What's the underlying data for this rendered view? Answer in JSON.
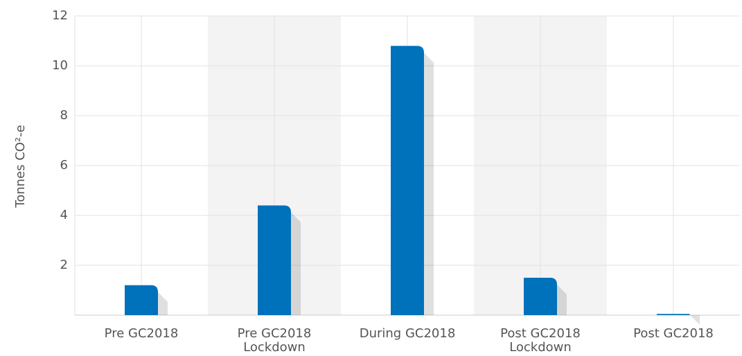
{
  "chart_data": {
    "type": "bar",
    "y_label": "Tonnes CO²-e",
    "categories": [
      [
        "Pre GC2018"
      ],
      [
        "Pre GC2018",
        "Lockdown"
      ],
      [
        "During GC2018"
      ],
      [
        "Post GC2018",
        "Lockdown"
      ],
      [
        "Post GC2018"
      ]
    ],
    "values": [
      1.2,
      4.4,
      10.8,
      1.5,
      0.05
    ],
    "color": "#0072bb",
    "ylim": [
      0,
      12
    ],
    "yticks": [
      2,
      4,
      6,
      8,
      10,
      12
    ],
    "grid": true
  }
}
